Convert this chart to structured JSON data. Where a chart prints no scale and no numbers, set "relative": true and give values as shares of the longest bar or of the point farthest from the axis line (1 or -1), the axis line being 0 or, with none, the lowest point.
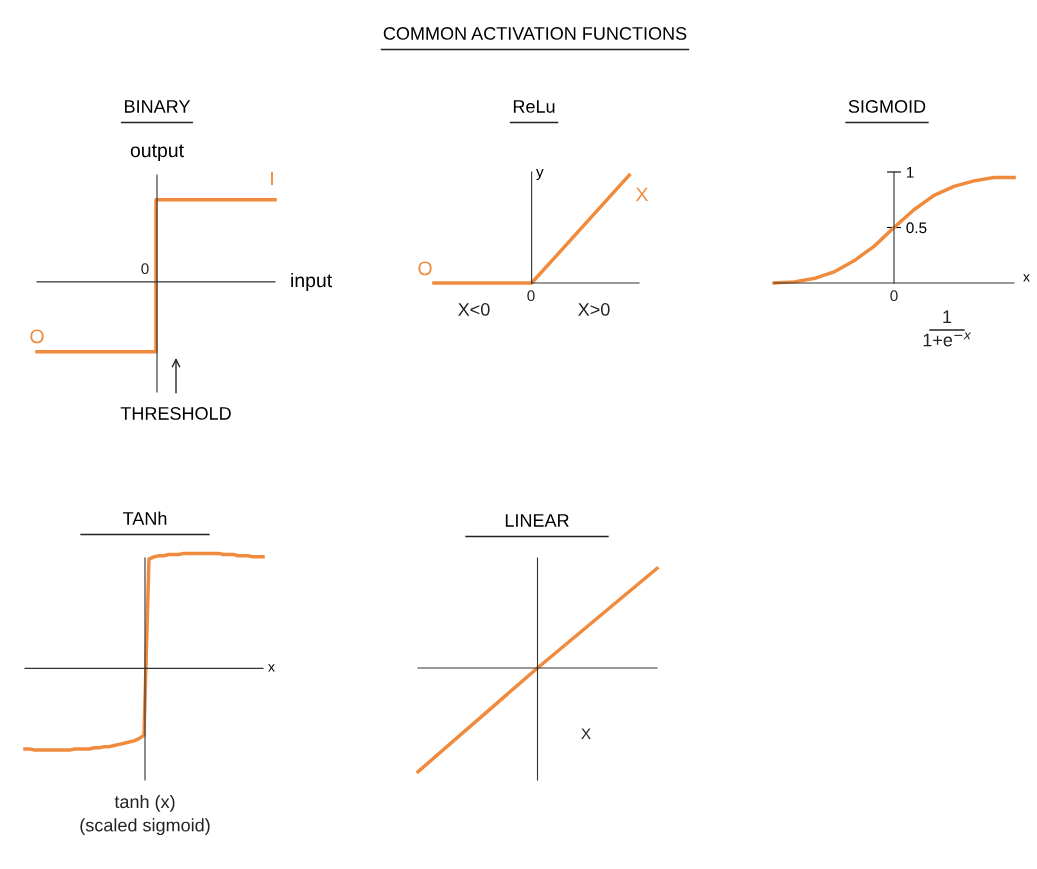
{
  "chart_data": [
    {
      "type": "other",
      "title": "COMMON ACTIVATION FUNCTIONS"
    },
    {
      "type": "step",
      "title": "BINARY",
      "relative": true,
      "xlabel": "input",
      "ylabel": "output",
      "tick_labels": false,
      "categories": [
        null,
        null,
        null,
        null,
        null,
        null,
        null,
        null,
        null,
        null,
        null,
        null,
        null
      ],
      "series": [
        {
          "color": "#f08a3c",
          "values": [
            -0.85,
            -0.85,
            -0.85,
            -0.85,
            -0.85,
            -0.85,
            -0.85,
            1,
            1,
            1,
            1,
            1,
            1
          ]
        }
      ],
      "annotations": [
        "0",
        "I",
        "O",
        "THRESHOLD"
      ]
    },
    {
      "type": "line",
      "title": "ReLu",
      "relative": true,
      "ylabel": "y",
      "tick_labels": false,
      "categories": [
        null,
        null,
        null,
        null,
        null,
        null,
        null,
        null,
        null
      ],
      "series": [
        {
          "color": "#f08a3c",
          "values": [
            0,
            0,
            0,
            0,
            0,
            0.25,
            0.5,
            0.75,
            1
          ]
        }
      ],
      "annotations": [
        "0",
        "O",
        "X",
        "X<0",
        "X>0"
      ]
    },
    {
      "type": "line",
      "title": "SIGMOID",
      "ylim": [
        0,
        1
      ],
      "yticks": [
        0.5,
        1
      ],
      "xlabel": "x",
      "tick_labels": "y",
      "categories": [
        null,
        null,
        null,
        null,
        null,
        null,
        null,
        null,
        null,
        null,
        null,
        null,
        null
      ],
      "series": [
        {
          "color": "#f08a3c",
          "values": [
            0,
            0.01,
            0.04,
            0.1,
            0.2,
            0.33,
            0.5,
            0.66,
            0.79,
            0.87,
            0.92,
            0.95,
            0.95
          ]
        }
      ],
      "annotations": [
        "0",
        "1\n1+e$^{−x}$"
      ]
    },
    {
      "type": "line",
      "title": "TANh",
      "relative": true,
      "xlabel": "x",
      "tick_labels": false,
      "categories": [
        null,
        null,
        null,
        null,
        null,
        null,
        null,
        null,
        null,
        null,
        null,
        null,
        null,
        null,
        null,
        null,
        null,
        null,
        null,
        null,
        null,
        null,
        null,
        null,
        null,
        null,
        null,
        null,
        null,
        null,
        null,
        null,
        null,
        null,
        null,
        null,
        null,
        null,
        null,
        null,
        null,
        null,
        null,
        null,
        null,
        null,
        null,
        null,
        null
      ],
      "series": [
        {
          "color": "#f08a3c",
          "values": [
            -0.7,
            -0.7,
            -0.71,
            -0.71,
            -0.71,
            -0.71,
            -0.71,
            -0.71,
            -0.71,
            -0.71,
            -0.7,
            -0.7,
            -0.7,
            -0.7,
            -0.69,
            -0.69,
            -0.68,
            -0.68,
            -0.67,
            -0.66,
            -0.65,
            -0.64,
            -0.63,
            -0.61,
            -0.58,
            0.95,
            0.97,
            0.98,
            0.98,
            0.99,
            0.99,
            0.99,
            1,
            1,
            1,
            1,
            1,
            1,
            1,
            1,
            0.99,
            0.99,
            0.99,
            0.98,
            0.98,
            0.98,
            0.97,
            0.97,
            0.97
          ]
        }
      ],
      "annotations": [
        "tanh (x)\n(scaled sigmoid)"
      ]
    },
    {
      "type": "line",
      "title": "LINEAR",
      "relative": true,
      "tick_labels": false,
      "categories": [
        null,
        null,
        null
      ],
      "series": [
        {
          "color": "#f08a3c",
          "values": [
            -1,
            0,
            0.96
          ]
        }
      ],
      "annotations": [
        "X"
      ]
    }
  ]
}
